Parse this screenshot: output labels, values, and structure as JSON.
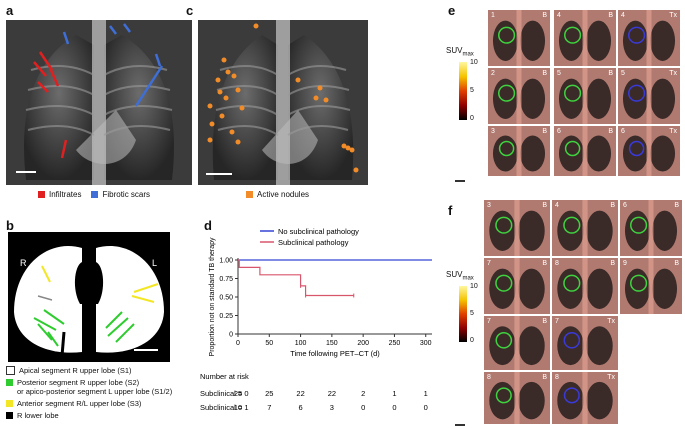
{
  "panels": {
    "a": {
      "letter": "a",
      "legend": [
        "Infiltrates",
        "Fibrotic scars"
      ],
      "colors": {
        "infiltrates": "#e02020",
        "fibrotic": "#3f6fd6"
      }
    },
    "b": {
      "letter": "b",
      "side_r": "R",
      "side_l": "L",
      "legend": [
        "Apical segment R upper lobe (S1)",
        "Posterior segment R upper lobe (S2)",
        "or apico-posterior segment L upper lobe (S1/2)",
        "Anterior segment R/L upper lobe (S3)",
        "R lower lobe"
      ],
      "colors": {
        "s1": "#ffffff",
        "s2": "#2ecc2e",
        "s3": "#f3e624",
        "rll": "#000000"
      }
    },
    "c": {
      "letter": "c",
      "legend": [
        "Active nodules"
      ],
      "color": "#f28c28"
    },
    "d": {
      "letter": "d"
    },
    "e": {
      "letter": "e",
      "suv_label": "SUV",
      "suv_sub": "max",
      "scale": [
        "10",
        "5",
        "0"
      ],
      "tiles": [
        {
          "num": "1",
          "tag": "B"
        },
        {
          "num": "4",
          "tag": "B"
        },
        {
          "num": "4",
          "tag": "Tx"
        },
        {
          "num": "2",
          "tag": "B"
        },
        {
          "num": "5",
          "tag": "B"
        },
        {
          "num": "5",
          "tag": "Tx"
        },
        {
          "num": "3",
          "tag": "B"
        },
        {
          "num": "6",
          "tag": "B"
        },
        {
          "num": "6",
          "tag": "Tx"
        }
      ]
    },
    "f": {
      "letter": "f",
      "suv_label": "SUV",
      "suv_sub": "max",
      "scale": [
        "10",
        "5",
        "0"
      ],
      "tiles": [
        {
          "num": "3",
          "tag": "B"
        },
        {
          "num": "4",
          "tag": "B"
        },
        {
          "num": "6",
          "tag": "B"
        },
        {
          "num": "7",
          "tag": "B"
        },
        {
          "num": "8",
          "tag": "B"
        },
        {
          "num": "9",
          "tag": "B"
        },
        {
          "num": "7",
          "tag": "B"
        },
        {
          "num": "7",
          "tag": "Tx"
        },
        {
          "num": "8",
          "tag": "B"
        },
        {
          "num": "8",
          "tag": "Tx"
        }
      ]
    }
  },
  "chart_data": {
    "type": "line",
    "xlabel": "Time following PET–CT (d)",
    "ylabel": "Proportion not on standard TB therapy",
    "xlim": [
      0,
      310
    ],
    "ylim": [
      0,
      1.0
    ],
    "x_ticks": [
      "0",
      "50",
      "100",
      "150",
      "200",
      "250",
      "300"
    ],
    "y_ticks": [
      "0",
      "0.25",
      "0.50",
      "0.75",
      "1.00"
    ],
    "legend_position": "top-right",
    "series": [
      {
        "name": "No subclinical pathology",
        "color": "#3446d6",
        "points": [
          [
            0,
            1.0
          ],
          [
            310,
            1.0
          ]
        ]
      },
      {
        "name": "Subclinical pathology",
        "color": "#d8566c",
        "points": [
          [
            0,
            1.0
          ],
          [
            2,
            1.0
          ],
          [
            2,
            0.9
          ],
          [
            35,
            0.9
          ],
          [
            35,
            0.8
          ],
          [
            100,
            0.8
          ],
          [
            100,
            0.65
          ],
          [
            108,
            0.65
          ],
          [
            108,
            0.52
          ],
          [
            185,
            0.52
          ]
        ]
      }
    ],
    "risk_table": {
      "title": "Number at risk",
      "times": [
        "0",
        "50",
        "100",
        "150",
        "200",
        "250",
        "300"
      ],
      "rows": [
        {
          "label": "Subclinical = 0",
          "values": [
            "25",
            "25",
            "22",
            "22",
            "2",
            "1",
            "1"
          ]
        },
        {
          "label": "Subclinical = 1",
          "values": [
            "10",
            "7",
            "6",
            "3",
            "0",
            "0",
            "0"
          ]
        }
      ]
    }
  }
}
